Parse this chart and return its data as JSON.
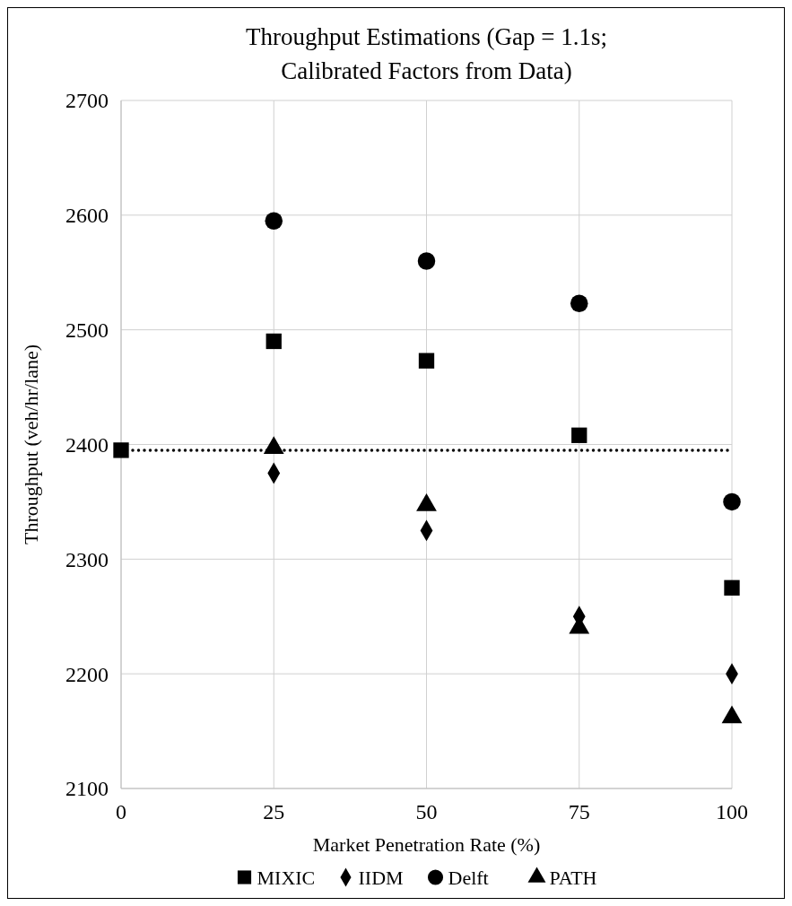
{
  "chart_data": {
    "type": "scatter",
    "title": "Throughput Estimations (Gap = 1.1s;\nCalibrated Factors from Data)",
    "xlabel": "Market Penetration Rate (%)",
    "ylabel": "Throughput (veh/hr/lane)",
    "x": [
      0,
      25,
      50,
      75,
      100
    ],
    "series": [
      {
        "name": "MIXIC",
        "color": "#000000",
        "marker": "square",
        "values": [
          2395,
          2490,
          2473,
          2408,
          2275
        ]
      },
      {
        "name": "IIDM",
        "color": "#000000",
        "marker": "diamond",
        "values": [
          null,
          2375,
          2325,
          2250,
          2200
        ]
      },
      {
        "name": "Delft",
        "color": "#000000",
        "marker": "circle",
        "values": [
          null,
          2595,
          2560,
          2523,
          2350
        ]
      },
      {
        "name": "PATH",
        "color": "#000000",
        "marker": "triangle",
        "values": [
          null,
          2397,
          2347,
          2240,
          2162
        ]
      }
    ],
    "xlim": [
      0,
      100
    ],
    "xticks": [
      0,
      25,
      50,
      75,
      100
    ],
    "ylim": [
      2100,
      2700
    ],
    "yticks": [
      2100,
      2200,
      2300,
      2400,
      2500,
      2600,
      2700
    ],
    "grid": true,
    "legend": "bottom",
    "ref_lines": [
      {
        "axis": "y",
        "value": 2395,
        "color": "#000000",
        "line_style": "dotted"
      }
    ]
  }
}
